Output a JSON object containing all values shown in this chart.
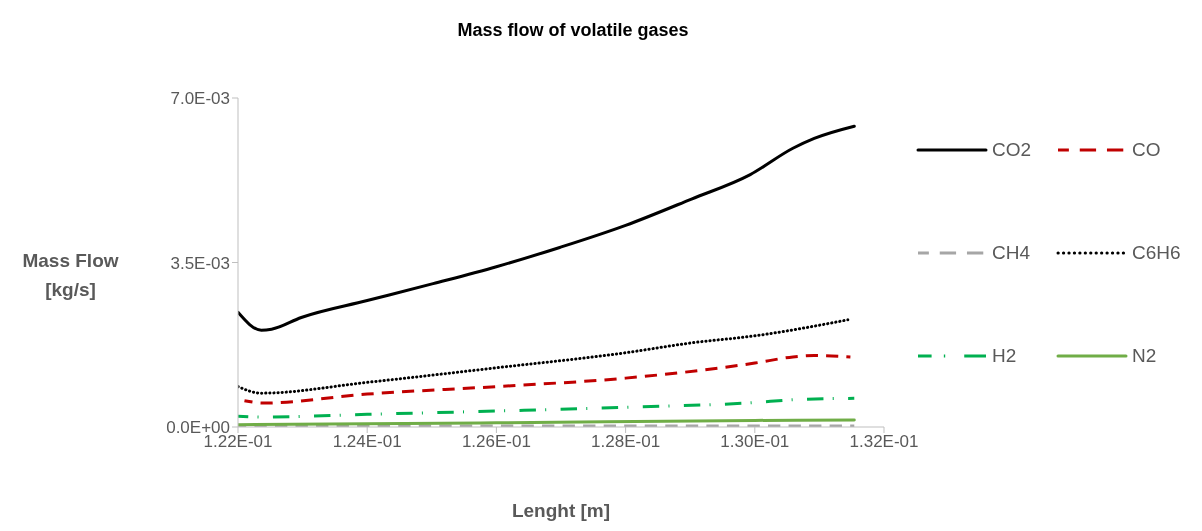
{
  "chart_data": {
    "type": "line",
    "title": "Mass flow of volatile  gases",
    "xlabel": "Lenght [m]",
    "ylabel": "Mass Flow [kg/s]",
    "xlim": [
      0.122,
      0.132
    ],
    "ylim": [
      0,
      0.007
    ],
    "xticks": [
      {
        "value": 0.122,
        "label": "1.22E-01"
      },
      {
        "value": 0.124,
        "label": "1.24E-01"
      },
      {
        "value": 0.126,
        "label": "1.26E-01"
      },
      {
        "value": 0.128,
        "label": "1.28E-01"
      },
      {
        "value": 0.13,
        "label": "1.30E-01"
      },
      {
        "value": 0.132,
        "label": "1.32E-01"
      }
    ],
    "yticks": [
      {
        "value": 0,
        "label": "0.0E+00"
      },
      {
        "value": 0.0035,
        "label": "3.5E-03"
      },
      {
        "value": 0.007,
        "label": "7.0E-03"
      }
    ],
    "grid": false,
    "legend": "right",
    "marker": "none",
    "series": [
      {
        "name": "CO2",
        "color": "#000000",
        "line_style": "solid",
        "x": [
          0.122,
          0.12236,
          0.12252,
          0.12298,
          0.124,
          0.12502,
          0.126,
          0.12698,
          0.128,
          0.12902,
          0.12993,
          0.13059,
          0.13092,
          0.13154
        ],
        "values": [
          0.00244,
          0.00206,
          0.00208,
          0.00233,
          0.00269,
          0.00305,
          0.00341,
          0.00382,
          0.00429,
          0.00485,
          0.00537,
          0.00593,
          0.00614,
          0.0064
        ]
      },
      {
        "name": "CO",
        "color": "#c00000",
        "line_style": "dashed",
        "x": [
          0.1221,
          0.12239,
          0.124,
          0.126,
          0.128,
          0.13,
          0.13059,
          0.13092,
          0.13148
        ],
        "values": [
          0.00056,
          0.00051,
          0.0007,
          0.00086,
          0.00104,
          0.00136,
          0.00149,
          0.00152,
          0.00149
        ]
      },
      {
        "name": "CH4",
        "color": "#a6a6a6",
        "line_style": "dashed",
        "x": [
          0.122,
          0.126,
          0.13154
        ],
        "values": [
          2e-05,
          2e-05,
          2e-05
        ]
      },
      {
        "name": "C6H6",
        "color": "#000000",
        "line_style": "dotted",
        "x": [
          0.122,
          0.12236,
          0.124,
          0.126,
          0.128,
          0.12902,
          0.13,
          0.13144
        ],
        "values": [
          0.00086,
          0.00072,
          0.00095,
          0.00126,
          0.00158,
          0.00179,
          0.00194,
          0.00228
        ]
      },
      {
        "name": "H2",
        "color": "#00b050",
        "line_style": "dashdot",
        "x": [
          0.122,
          0.12239,
          0.124,
          0.126,
          0.128,
          0.13,
          0.13059,
          0.13154
        ],
        "values": [
          0.00023,
          0.00021,
          0.00027,
          0.00034,
          0.00042,
          0.00052,
          0.00058,
          0.00061
        ]
      },
      {
        "name": "N2",
        "color": "#70ad47",
        "line_style": "solid",
        "x": [
          0.122,
          0.126,
          0.13,
          0.13154
        ],
        "values": [
          5e-05,
          9e-05,
          0.00014,
          0.00015
        ]
      }
    ]
  }
}
